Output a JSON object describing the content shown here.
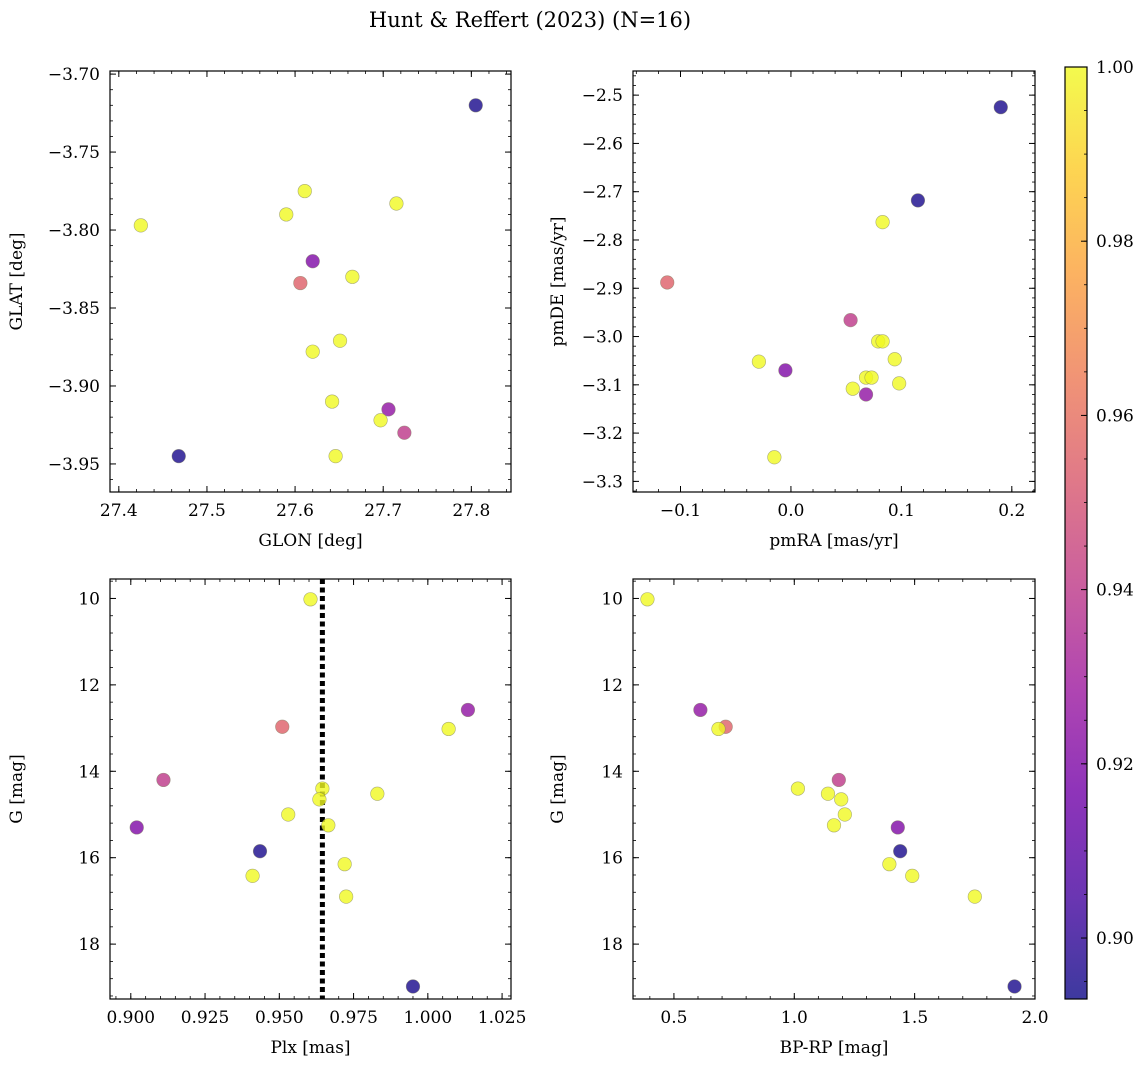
{
  "figure": {
    "title": "Hunt & Reffert (2023) (N=16)"
  },
  "colormap": {
    "name": "plasma",
    "range": [
      0.893,
      1.0
    ],
    "stops": [
      "#0d0887",
      "#46039f",
      "#7201a8",
      "#9c179e",
      "#bd3786",
      "#d8576b",
      "#ed7953",
      "#fb9f3a",
      "#fdca26",
      "#f0f921"
    ],
    "alpha": 0.8,
    "ticks": [
      0.9,
      0.92,
      0.94,
      0.96,
      0.98,
      1.0
    ],
    "tick_labels": [
      "0.90",
      "0.92",
      "0.94",
      "0.96",
      "0.98",
      "1.00"
    ]
  },
  "chart_data": [
    {
      "type": "scatter",
      "id": "glon-glat",
      "xlabel": "GLON [deg]",
      "ylabel": "GLAT [deg]",
      "xlim": [
        27.39,
        27.845
      ],
      "ylim": [
        -3.968,
        -3.698
      ],
      "xticks": [
        27.4,
        27.5,
        27.6,
        27.7,
        27.8
      ],
      "xtick_labels": [
        "27.4",
        "27.5",
        "27.6",
        "27.7",
        "27.8"
      ],
      "yticks": [
        -3.7,
        -3.75,
        -3.8,
        -3.85,
        -3.9,
        -3.95
      ],
      "ytick_labels": [
        "−3.70",
        "−3.75",
        "−3.80",
        "−3.85",
        "−3.90",
        "−3.95"
      ],
      "points": [
        {
          "x": 27.805,
          "y": -3.72,
          "c": 0.895
        },
        {
          "x": 27.611,
          "y": -3.775,
          "c": 1.0
        },
        {
          "x": 27.59,
          "y": -3.79,
          "c": 1.0
        },
        {
          "x": 27.715,
          "y": -3.783,
          "c": 1.0
        },
        {
          "x": 27.425,
          "y": -3.797,
          "c": 1.0
        },
        {
          "x": 27.62,
          "y": -3.82,
          "c": 0.92
        },
        {
          "x": 27.606,
          "y": -3.834,
          "c": 0.955
        },
        {
          "x": 27.665,
          "y": -3.83,
          "c": 1.0
        },
        {
          "x": 27.651,
          "y": -3.871,
          "c": 1.0
        },
        {
          "x": 27.62,
          "y": -3.878,
          "c": 1.0
        },
        {
          "x": 27.642,
          "y": -3.91,
          "c": 1.0
        },
        {
          "x": 27.706,
          "y": -3.915,
          "c": 0.925
        },
        {
          "x": 27.697,
          "y": -3.922,
          "c": 1.0
        },
        {
          "x": 27.724,
          "y": -3.93,
          "c": 0.94
        },
        {
          "x": 27.468,
          "y": -3.945,
          "c": 0.895
        },
        {
          "x": 27.646,
          "y": -3.945,
          "c": 1.0
        }
      ]
    },
    {
      "type": "scatter",
      "id": "pmra-pmde",
      "xlabel": "pmRA [mas/yr]",
      "ylabel": "pmDE [mas/yr]",
      "xlim": [
        -0.143,
        0.221
      ],
      "ylim": [
        -3.322,
        -2.45
      ],
      "xticks": [
        -0.1,
        0.0,
        0.1,
        0.2
      ],
      "xtick_labels": [
        "−0.1",
        "0.0",
        "0.1",
        "0.2"
      ],
      "yticks": [
        -2.5,
        -2.6,
        -2.7,
        -2.8,
        -2.9,
        -3.0,
        -3.1,
        -3.2,
        -3.3
      ],
      "ytick_labels": [
        "−2.5",
        "−2.6",
        "−2.7",
        "−2.8",
        "−2.9",
        "−3.0",
        "−3.1",
        "−3.2",
        "−3.3"
      ],
      "points": [
        {
          "x": 0.19,
          "y": -2.525,
          "c": 0.895
        },
        {
          "x": 0.115,
          "y": -2.718,
          "c": 0.895
        },
        {
          "x": 0.083,
          "y": -2.763,
          "c": 1.0
        },
        {
          "x": -0.112,
          "y": -2.888,
          "c": 0.955
        },
        {
          "x": 0.054,
          "y": -2.966,
          "c": 0.94
        },
        {
          "x": 0.079,
          "y": -3.01,
          "c": 1.0
        },
        {
          "x": 0.083,
          "y": -3.01,
          "c": 1.0
        },
        {
          "x": -0.029,
          "y": -3.052,
          "c": 1.0
        },
        {
          "x": 0.094,
          "y": -3.047,
          "c": 1.0
        },
        {
          "x": -0.005,
          "y": -3.07,
          "c": 0.92
        },
        {
          "x": 0.068,
          "y": -3.085,
          "c": 1.0
        },
        {
          "x": 0.073,
          "y": -3.085,
          "c": 1.0
        },
        {
          "x": 0.098,
          "y": -3.097,
          "c": 1.0
        },
        {
          "x": 0.056,
          "y": -3.108,
          "c": 1.0
        },
        {
          "x": 0.068,
          "y": -3.12,
          "c": 0.925
        },
        {
          "x": -0.015,
          "y": -3.25,
          "c": 1.0
        }
      ]
    },
    {
      "type": "scatter",
      "id": "plx-g",
      "xlabel": "Plx [mas]",
      "ylabel": "G [mag]",
      "xlim": [
        0.893,
        1.028
      ],
      "ylim": [
        19.27,
        9.55
      ],
      "xticks": [
        0.9,
        0.925,
        0.95,
        0.975,
        1.0,
        1.025
      ],
      "xtick_labels": [
        "0.900",
        "0.925",
        "0.950",
        "0.975",
        "1.000",
        "1.025"
      ],
      "yticks": [
        10,
        12,
        14,
        16,
        18
      ],
      "ytick_labels": [
        "10",
        "12",
        "14",
        "16",
        "18"
      ],
      "vline": 0.9645,
      "points": [
        {
          "x": 0.9605,
          "y": 10.02,
          "c": 1.0
        },
        {
          "x": 1.0135,
          "y": 12.58,
          "c": 0.925
        },
        {
          "x": 0.951,
          "y": 12.97,
          "c": 0.955
        },
        {
          "x": 1.007,
          "y": 13.02,
          "c": 1.0
        },
        {
          "x": 0.911,
          "y": 14.2,
          "c": 0.94
        },
        {
          "x": 0.9645,
          "y": 14.4,
          "c": 1.0
        },
        {
          "x": 0.983,
          "y": 14.52,
          "c": 1.0
        },
        {
          "x": 0.9635,
          "y": 14.65,
          "c": 1.0
        },
        {
          "x": 0.953,
          "y": 15.0,
          "c": 1.0
        },
        {
          "x": 0.9665,
          "y": 15.25,
          "c": 1.0
        },
        {
          "x": 0.902,
          "y": 15.3,
          "c": 0.92
        },
        {
          "x": 0.9435,
          "y": 15.85,
          "c": 0.895
        },
        {
          "x": 0.972,
          "y": 16.15,
          "c": 1.0
        },
        {
          "x": 0.941,
          "y": 16.42,
          "c": 1.0
        },
        {
          "x": 0.9725,
          "y": 16.9,
          "c": 1.0
        },
        {
          "x": 0.995,
          "y": 18.98,
          "c": 0.895
        }
      ]
    },
    {
      "type": "scatter",
      "id": "bprp-g",
      "xlabel": "BP-RP [mag]",
      "ylabel": "G [mag]",
      "xlim": [
        0.33,
        2.0
      ],
      "ylim": [
        19.27,
        9.55
      ],
      "xticks": [
        0.5,
        1.0,
        1.5,
        2.0
      ],
      "xtick_labels": [
        "0.5",
        "1.0",
        "1.5",
        "2.0"
      ],
      "yticks": [
        10,
        12,
        14,
        16,
        18
      ],
      "ytick_labels": [
        "10",
        "12",
        "14",
        "16",
        "18"
      ],
      "points": [
        {
          "x": 0.39,
          "y": 10.02,
          "c": 1.0
        },
        {
          "x": 0.61,
          "y": 12.58,
          "c": 0.925
        },
        {
          "x": 0.715,
          "y": 12.97,
          "c": 0.955
        },
        {
          "x": 0.685,
          "y": 13.02,
          "c": 1.0
        },
        {
          "x": 1.185,
          "y": 14.2,
          "c": 0.94
        },
        {
          "x": 1.015,
          "y": 14.4,
          "c": 1.0
        },
        {
          "x": 1.14,
          "y": 14.52,
          "c": 1.0
        },
        {
          "x": 1.195,
          "y": 14.65,
          "c": 1.0
        },
        {
          "x": 1.21,
          "y": 15.0,
          "c": 1.0
        },
        {
          "x": 1.165,
          "y": 15.25,
          "c": 1.0
        },
        {
          "x": 1.43,
          "y": 15.3,
          "c": 0.92
        },
        {
          "x": 1.44,
          "y": 15.85,
          "c": 0.895
        },
        {
          "x": 1.395,
          "y": 16.15,
          "c": 1.0
        },
        {
          "x": 1.49,
          "y": 16.42,
          "c": 1.0
        },
        {
          "x": 1.75,
          "y": 16.9,
          "c": 1.0
        },
        {
          "x": 1.915,
          "y": 18.98,
          "c": 0.895
        }
      ]
    }
  ]
}
